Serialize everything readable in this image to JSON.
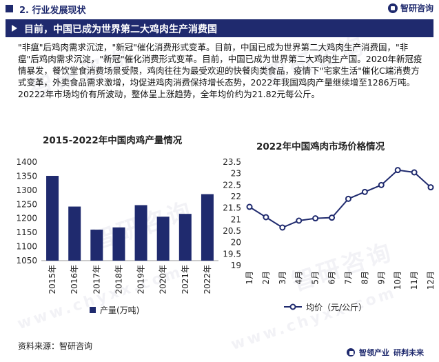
{
  "header": {
    "section": "2. 行业发展现状",
    "brand": "智研咨询",
    "banner_title": "目前，中国已成为世界第二大鸡肉生产消费国"
  },
  "paragraph": "\"非瘟\"后鸡肉需求沉淀，\"新冠\"催化消费形式变革。目前，中国已成为世界第二大鸡肉生产消费国，\"非瘟\"后鸡肉需求沉淀，\"新冠\"催化消费形式变革。目前，中国已成为世界第二大鸡肉生产国。2020年新冠疫情暴发，餐饮堂食消费场景受限，鸡肉往往为最受欢迎的快餐肉类食品，疫情下\"宅家生活\"催化C端消费方式变革，外卖食品需求激增，均促进鸡肉消费保持增长态势，2022年我国鸡肉产量继续增至1286万吨。20222年市场均价有所波动，整体呈上涨趋势，全年均价约为21.82元每公斤。",
  "watermark": "智研咨询",
  "watermark_url": "www.chyxx.com",
  "source": "资料来源：智研咨询",
  "footer_brand": {
    "left": "智领产业",
    "right": "研判未来"
  },
  "chart_data": [
    {
      "type": "bar",
      "title": "2015-2022年中国肉鸡产量情况",
      "categories": [
        "2015年",
        "2016年",
        "2017年",
        "2018年",
        "2019年",
        "2020年",
        "2021年",
        "2022年"
      ],
      "series": [
        {
          "name": "产量(万吨)",
          "values": [
            1351,
            1242,
            1160,
            1168,
            1247,
            1206,
            1216,
            1286
          ]
        }
      ],
      "ylim": [
        1050,
        1400
      ],
      "yticks": [
        1050,
        1100,
        1150,
        1200,
        1250,
        1300,
        1350,
        1400
      ],
      "color": "#1f2a6e",
      "legend": "bottom"
    },
    {
      "type": "line",
      "title": "2022年中国鸡肉市场价格情况",
      "categories": [
        "1月",
        "2月",
        "3月",
        "4月",
        "5月",
        "6月",
        "7月",
        "8月",
        "9月",
        "10月",
        "11月",
        "12月"
      ],
      "series": [
        {
          "name": "均价（元/公斤）",
          "values": [
            21.55,
            21.1,
            20.65,
            20.95,
            21.05,
            21.08,
            21.9,
            22.2,
            22.5,
            23.15,
            23.05,
            22.4
          ]
        }
      ],
      "ylim": [
        19,
        23.5
      ],
      "yticks": [
        "19",
        "19.5",
        "20",
        "20.5",
        "21",
        "21.5",
        "22",
        "22.5",
        "23",
        "23.5"
      ],
      "color": "#1f2a6e",
      "legend": "bottom"
    }
  ]
}
